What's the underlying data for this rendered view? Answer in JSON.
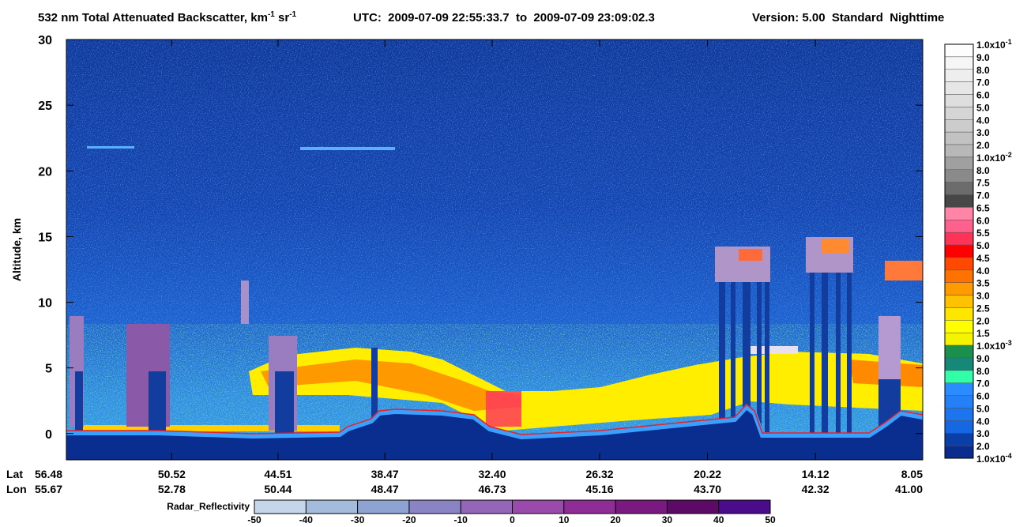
{
  "chart_data": {
    "type": "heatmap",
    "title": [
      {
        "text": "532 nm Total Attenuated Backscatter, km"
      },
      {
        "text": "-1",
        "sup": true
      },
      {
        "text": " sr"
      },
      {
        "text": "-1",
        "sup": true
      }
    ],
    "utc": "UTC:  2009-07-09 22:55:33.7  to  2009-07-09 23:09:02.3",
    "version": "Version: 5.00  Standard  Nighttime",
    "y_label": "Altitude, km",
    "ylim": [
      -2,
      30
    ],
    "yticks": [
      0,
      5,
      10,
      15,
      20,
      25,
      30
    ],
    "x_rows": [
      "Lat",
      "Lon"
    ],
    "xlim": [
      56.48,
      8.05
    ],
    "xticks": [
      56.48,
      50.52,
      44.51,
      38.47,
      {
        "value": 32.4,
        "label": "32.40"
      },
      26.32,
      20.22,
      14.12,
      8.05
    ],
    "lon_ticks": [
      55.67,
      52.78,
      50.44,
      48.47,
      46.73,
      45.16,
      {
        "value": 43.7,
        "label": "43.70"
      },
      42.32,
      {
        "value": 41.0,
        "label": "41.00"
      }
    ],
    "colorbar": {
      "labels": [
        {
          "text": "1.0x10",
          "sup": "-1"
        },
        {
          "text": "9.0"
        },
        {
          "text": "8.0"
        },
        {
          "text": "7.0"
        },
        {
          "text": "6.0"
        },
        {
          "text": "5.0"
        },
        {
          "text": "4.0"
        },
        {
          "text": "3.0"
        },
        {
          "text": "2.0"
        },
        {
          "text": "1.0x10",
          "sup": "-2"
        },
        {
          "text": "8.0"
        },
        {
          "text": "7.5"
        },
        {
          "text": "7.0"
        },
        {
          "text": "6.5"
        },
        {
          "text": "6.0"
        },
        {
          "text": "5.5"
        },
        {
          "text": "5.0"
        },
        {
          "text": "4.5"
        },
        {
          "text": "4.0"
        },
        {
          "text": "3.5"
        },
        {
          "text": "3.0"
        },
        {
          "text": "2.5"
        },
        {
          "text": "2.0"
        },
        {
          "text": "1.5"
        },
        {
          "text": "1.0x10",
          "sup": "-3"
        },
        {
          "text": "9.0"
        },
        {
          "text": "8.0"
        },
        {
          "text": "7.0"
        },
        {
          "text": "6.0"
        },
        {
          "text": "5.0"
        },
        {
          "text": "4.0"
        },
        {
          "text": "3.0"
        },
        {
          "text": "2.0"
        },
        {
          "text": "1.0x10",
          "sup": "-4"
        }
      ],
      "colors": [
        "#fdfdfd",
        "#f6f6f6",
        "#eeeeee",
        "#e6e6e6",
        "#dedede",
        "#d5d5d5",
        "#cccccc",
        "#c2c2c2",
        "#b8b8b8",
        "#a0a0a0",
        "#8a8a8a",
        "#6c6c6c",
        "#474747",
        "#ff85a8",
        "#ff608c",
        "#ff3358",
        "#ff0000",
        "#ff4800",
        "#ff7200",
        "#ff9a00",
        "#ffc200",
        "#ffe600",
        "#ffff00",
        "#f4f400",
        "#1b8f4c",
        "#14897a",
        "#30ffa8",
        "#2a8cff",
        "#2380f6",
        "#1c74ee",
        "#1668e2",
        "#0c3ea8",
        "#0a2c8e"
      ]
    },
    "radar": {
      "label": "Radar_Reflectivity",
      "xlim": [
        -50,
        50
      ],
      "xticks": [
        -50,
        -40,
        -30,
        -20,
        -10,
        0,
        10,
        20,
        30,
        40,
        50
      ],
      "colors": [
        "#c6d6ea",
        "#a4bbdb",
        "#8fa3d2",
        "#8a84c4",
        "#9366b8",
        "#9a4aaa",
        "#8f2d97",
        "#7a1a80",
        "#5c0a65",
        "#4a0c8a"
      ]
    }
  }
}
